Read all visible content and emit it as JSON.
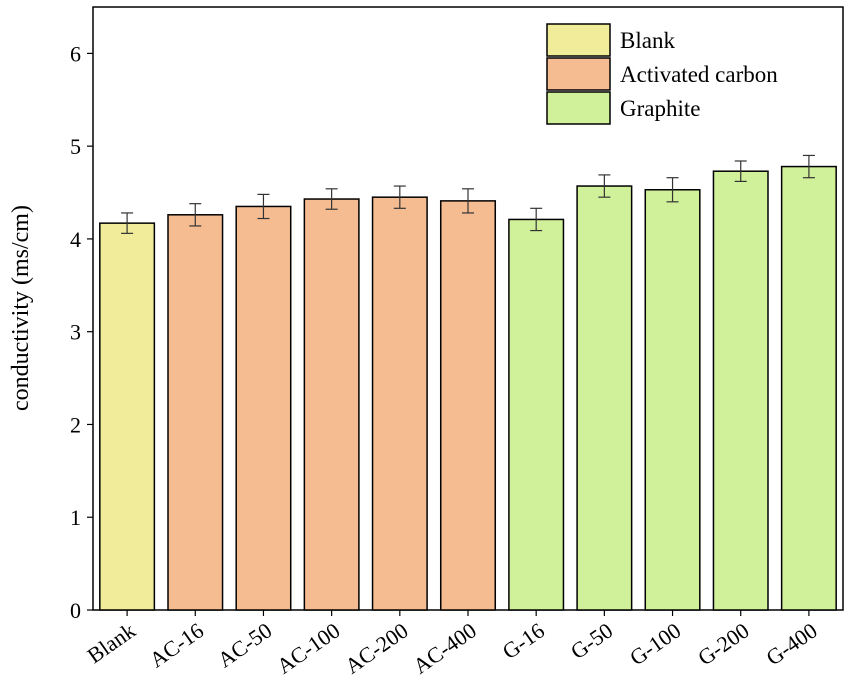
{
  "chart_data": {
    "type": "bar",
    "xlabel": "",
    "ylabel": "conductivity (ms/cm)",
    "ylim": [
      0,
      6.5
    ],
    "yticks": [
      "0",
      "1",
      "2",
      "3",
      "4",
      "5",
      "6"
    ],
    "categories": [
      "Blank",
      "AC-16",
      "AC-50",
      "AC-100",
      "AC-200",
      "AC-400",
      "G-16",
      "G-50",
      "G-100",
      "G-200",
      "G-400"
    ],
    "values": [
      4.17,
      4.26,
      4.35,
      4.43,
      4.45,
      4.41,
      4.21,
      4.57,
      4.53,
      4.73,
      4.78
    ],
    "errors": [
      0.11,
      0.12,
      0.13,
      0.11,
      0.12,
      0.13,
      0.12,
      0.12,
      0.13,
      0.11,
      0.12
    ],
    "groups": [
      "Blank",
      "Activated carbon",
      "Activated carbon",
      "Activated carbon",
      "Activated carbon",
      "Activated carbon",
      "Graphite",
      "Graphite",
      "Graphite",
      "Graphite",
      "Graphite"
    ],
    "legend": [
      {
        "name": "Blank",
        "color": "#F0EC9A"
      },
      {
        "name": "Activated carbon",
        "color": "#F5BC92"
      },
      {
        "name": "Graphite",
        "color": "#D0F09A"
      }
    ],
    "legend_position": "top-right",
    "grid": false
  }
}
